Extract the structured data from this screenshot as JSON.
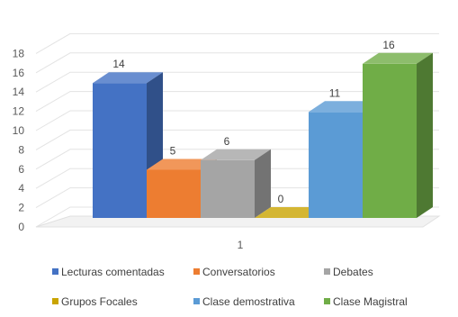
{
  "chart_data": {
    "type": "bar",
    "style": "3d-clustered-column",
    "categories": [
      "1"
    ],
    "series": [
      {
        "name": "Lecturas comentadas",
        "values": [
          14
        ],
        "color": "#4472C4"
      },
      {
        "name": "Conversatorios",
        "values": [
          5
        ],
        "color": "#ED7D31"
      },
      {
        "name": "Debates",
        "values": [
          6
        ],
        "color": "#A5A5A5"
      },
      {
        "name": "Grupos Focales",
        "values": [
          0
        ],
        "color": "#C9A400"
      },
      {
        "name": "Clase demostrativa",
        "values": [
          11
        ],
        "color": "#5B9BD5"
      },
      {
        "name": "Clase Magistral",
        "values": [
          16
        ],
        "color": "#70AD47"
      }
    ],
    "y_ticks": [
      "0",
      "2",
      "4",
      "6",
      "8",
      "10",
      "12",
      "14",
      "16",
      "18"
    ],
    "data_labels": [
      "14",
      "5",
      "6",
      "0",
      "11",
      "16"
    ],
    "ylim": [
      0,
      18
    ],
    "grid": true,
    "legend_position": "bottom"
  }
}
